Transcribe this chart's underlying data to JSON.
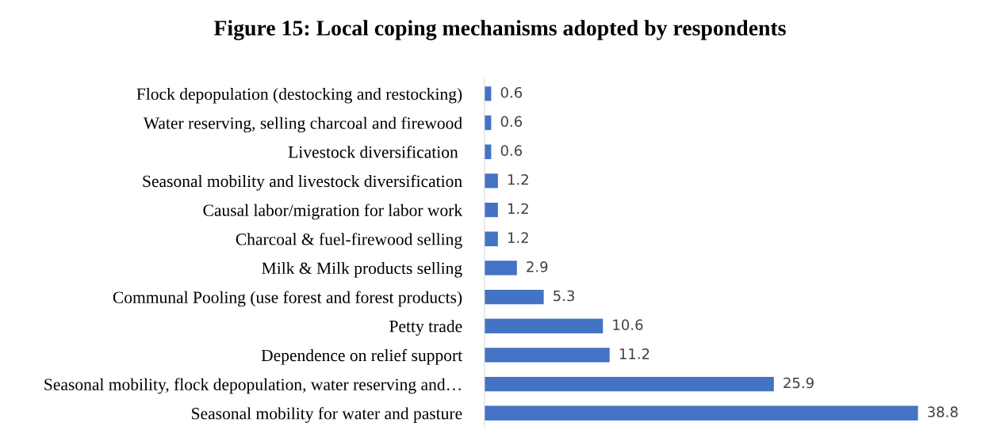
{
  "chart_data": {
    "type": "bar",
    "orientation": "horizontal",
    "title": "Figure 15: Local coping mechanisms adopted by respondents",
    "categories": [
      "Flock depopulation (destocking and restocking)",
      "Water reserving, selling charcoal and firewood",
      "Livestock diversification ",
      "Seasonal mobility and livestock diversification",
      "Causal labor/migration for labor work",
      "Charcoal & fuel-firewood selling",
      "Milk & Milk products selling",
      "Communal Pooling (use forest and forest products)",
      "Petty trade",
      "Dependence on relief support",
      "Seasonal mobility, flock depopulation, water reserving and…",
      "Seasonal mobility for water and pasture"
    ],
    "values": [
      0.6,
      0.6,
      0.6,
      1.2,
      1.2,
      1.2,
      2.9,
      5.3,
      10.6,
      11.2,
      25.9,
      38.8
    ],
    "color": "#4472c4",
    "data_labels": true,
    "tick_labels": "y"
  }
}
